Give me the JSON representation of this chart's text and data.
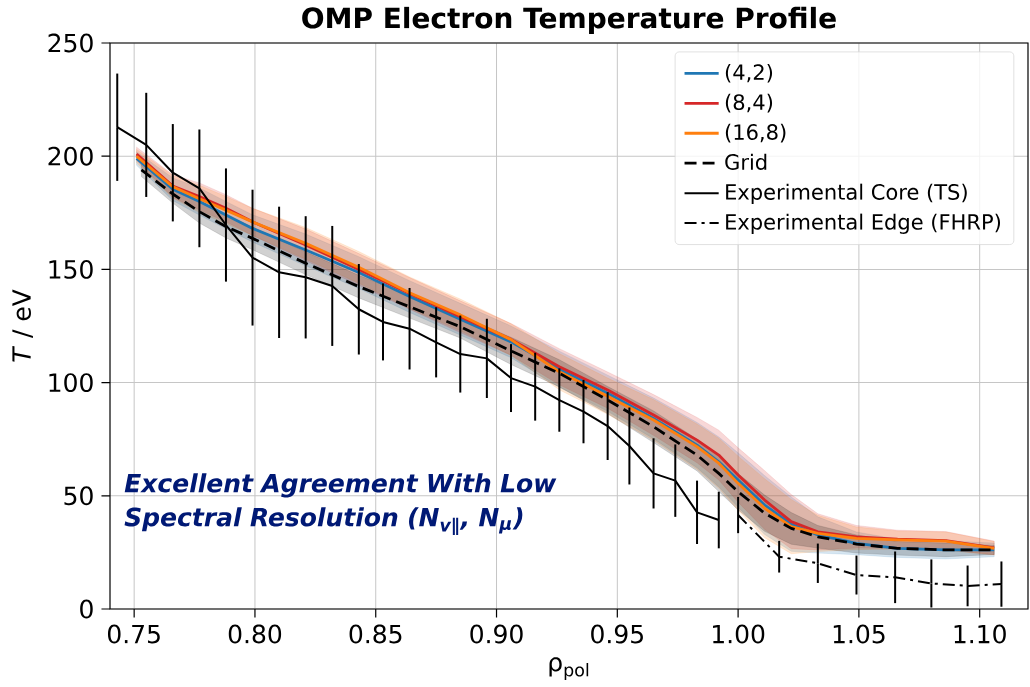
{
  "chart_data": {
    "type": "line",
    "title": "OMP Electron Temperature Profile",
    "xlabel": "ρ$_{pol}$",
    "ylabel": "*T* / eV",
    "xlim": [
      0.74,
      1.12
    ],
    "ylim": [
      0,
      250
    ],
    "xticks": [
      {
        "value": 0.75,
        "label": "0.75"
      },
      {
        "value": 0.8,
        "label": "0.80"
      },
      {
        "value": 0.85,
        "label": "0.85"
      },
      {
        "value": 0.9,
        "label": "0.90"
      },
      {
        "value": 0.95,
        "label": "0.95"
      },
      {
        "value": 1.0,
        "label": "1.00"
      },
      {
        "value": 1.05,
        "label": "1.05"
      },
      {
        "value": 1.1,
        "label": "1.10"
      }
    ],
    "yticks": [
      0,
      50,
      100,
      150,
      200,
      250
    ],
    "grid": true,
    "legend": "top right",
    "annotations": [
      "Excellent Agreement With Low Spectral Resolution (N$_{v∥}$, N$_{μ}$)"
    ],
    "series": [
      {
        "name": "(4,2)",
        "color": "#1f77b4",
        "x": [
          0.751,
          0.766,
          0.777,
          0.788,
          0.799,
          0.821,
          0.843,
          0.864,
          0.885,
          0.906,
          0.926,
          0.946,
          0.965,
          0.983,
          0.992,
          1.0,
          1.011,
          1.022,
          1.033,
          1.049,
          1.066,
          1.086,
          1.106
        ],
        "values": [
          199,
          185.4,
          180,
          174,
          168.1,
          158.6,
          148.6,
          138,
          128,
          118,
          105.9,
          95.3,
          84.2,
          72.4,
          65,
          57,
          45.9,
          37.5,
          32.7,
          29,
          26.8,
          26.1,
          26.1
        ],
        "lower": [
          196,
          180.4,
          174,
          168,
          162.1,
          151.6,
          141.6,
          131,
          121,
          111,
          97.9,
          87.3,
          75.2,
          62.4,
          54,
          45,
          32.9,
          25.5,
          24.7,
          24,
          22.8,
          22.1,
          23.1
        ],
        "upper": [
          202,
          190.4,
          186,
          180,
          174.1,
          165.6,
          155.6,
          145,
          135,
          125,
          113.9,
          103.3,
          93.2,
          82.4,
          76,
          69,
          58.9,
          49.5,
          40.7,
          34,
          30.8,
          30.1,
          29.1
        ]
      },
      {
        "name": "(8,4)",
        "color": "#d62728",
        "x": [
          0.751,
          0.766,
          0.777,
          0.788,
          0.799,
          0.821,
          0.843,
          0.864,
          0.885,
          0.906,
          0.926,
          0.946,
          0.965,
          0.983,
          0.992,
          1.0,
          1.011,
          1.022,
          1.033,
          1.049,
          1.066,
          1.086,
          1.106
        ],
        "values": [
          201,
          186.8,
          182.2,
          177,
          171,
          160.8,
          150,
          139.4,
          129.1,
          119.1,
          107,
          96.7,
          85.7,
          74.6,
          68,
          59.2,
          48.1,
          38.6,
          34.1,
          31.9,
          30.8,
          30.2,
          27
        ],
        "lower": [
          198,
          181.8,
          176.2,
          171,
          165,
          153.8,
          143,
          132.4,
          122.1,
          112.1,
          99,
          88.7,
          76.7,
          64.6,
          57,
          47.2,
          35.1,
          26.6,
          26.1,
          26.9,
          26.8,
          26.2,
          24
        ],
        "upper": [
          204,
          191.8,
          188.2,
          183,
          177,
          167.8,
          157,
          146.4,
          136.1,
          126.1,
          115,
          104.7,
          94.7,
          84.6,
          79,
          71.2,
          61.1,
          50.6,
          42.1,
          36.9,
          34.8,
          34.2,
          30
        ]
      },
      {
        "name": "(16,8)",
        "color": "#ff7f0e",
        "x": [
          0.751,
          0.766,
          0.777,
          0.788,
          0.799,
          0.821,
          0.843,
          0.864,
          0.885,
          0.906,
          0.926,
          0.946,
          0.965,
          0.983,
          0.992,
          1.0,
          1.011,
          1.022,
          1.033,
          1.049,
          1.066,
          1.086,
          1.106
        ],
        "values": [
          200,
          186.5,
          181.2,
          176.2,
          171,
          161.5,
          150.9,
          139.7,
          129.9,
          119,
          104.8,
          94,
          83.5,
          71.7,
          64.4,
          55.5,
          44.5,
          36.4,
          33.4,
          31.2,
          30.5,
          30,
          26.8
        ],
        "lower": [
          197,
          181.5,
          175.2,
          170.2,
          165,
          154.5,
          143.9,
          132.7,
          122.9,
          112,
          96.8,
          86,
          74.5,
          61.7,
          53.4,
          43.5,
          31.5,
          24.4,
          25.4,
          26.2,
          26.5,
          26,
          23.8
        ],
        "upper": [
          203,
          191.5,
          187.2,
          182.2,
          177,
          168.5,
          157.9,
          146.7,
          136.9,
          126,
          112.8,
          102,
          92.5,
          81.7,
          75.4,
          67.5,
          57.5,
          48.4,
          41.4,
          36.2,
          34.5,
          34,
          29.8
        ]
      },
      {
        "name": "Grid",
        "color": "#000000",
        "line_style": "dashed",
        "x": [
          0.753,
          0.766,
          0.777,
          0.788,
          0.799,
          0.821,
          0.843,
          0.864,
          0.885,
          0.906,
          0.926,
          0.946,
          0.965,
          0.983,
          0.992,
          1.0,
          1.011,
          1.022,
          1.033,
          1.049,
          1.066,
          1.086,
          1.106
        ],
        "values": [
          194,
          183.3,
          175.5,
          168.9,
          163.7,
          152.7,
          142.4,
          133.5,
          124.7,
          114,
          104.1,
          92.3,
          80.5,
          68,
          59.9,
          51.8,
          42.3,
          35.6,
          31.9,
          28.7,
          26.8,
          26.1,
          26.1
        ],
        "lower": [
          191,
          179.3,
          170.5,
          163.9,
          158.7,
          147.7,
          137.4,
          128.5,
          119.7,
          108,
          98.1,
          86.3,
          73.5,
          61,
          51.9,
          43.8,
          34.3,
          28.6,
          26.9,
          24.7,
          23.8,
          23.1,
          24.1
        ],
        "upper": [
          197,
          187.3,
          180.5,
          173.9,
          168.7,
          157.7,
          147.4,
          138.5,
          129.7,
          120,
          110.1,
          98.3,
          87.5,
          75,
          67.9,
          59.8,
          50.3,
          42.6,
          36.9,
          32.7,
          29.8,
          29.1,
          28.1
        ]
      },
      {
        "name": "Experimental Core (TS)",
        "color": "#000000",
        "x": [
          0.743,
          0.755,
          0.766,
          0.777,
          0.788,
          0.799,
          0.81,
          0.821,
          0.832,
          0.843,
          0.853,
          0.864,
          0.875,
          0.885,
          0.896,
          0.906,
          0.916,
          0.926,
          0.936,
          0.946,
          0.955,
          0.965,
          0.974,
          0.983,
          0.992
        ],
        "values": [
          212.8,
          205,
          192.7,
          185.8,
          169.6,
          155.2,
          148.7,
          146.5,
          142.7,
          132.4,
          126.8,
          123.8,
          117.8,
          112.6,
          110.7,
          102,
          98.2,
          92.3,
          87.2,
          80.8,
          72,
          59.9,
          56.7,
          42.7,
          39.3
        ],
        "errors": [
          23.7,
          23,
          21.5,
          26,
          25,
          30,
          29,
          27,
          26.5,
          20,
          17,
          18,
          15.5,
          17,
          17.5,
          15,
          15,
          14,
          14,
          15,
          17,
          15.5,
          16,
          14,
          12.5
        ]
      },
      {
        "name": "Experimental Edge (FHRP)",
        "color": "#000000",
        "line_style": "dashdot",
        "x": [
          1.0,
          1.017,
          1.033,
          1.049,
          1.065,
          1.08,
          1.095,
          1.109
        ],
        "values": [
          41.5,
          23.1,
          20.2,
          15,
          14,
          11.3,
          10.2,
          11
        ],
        "errors": [
          8,
          7,
          8.7,
          8.6,
          11.4,
          10.6,
          9,
          10
        ]
      }
    ]
  }
}
